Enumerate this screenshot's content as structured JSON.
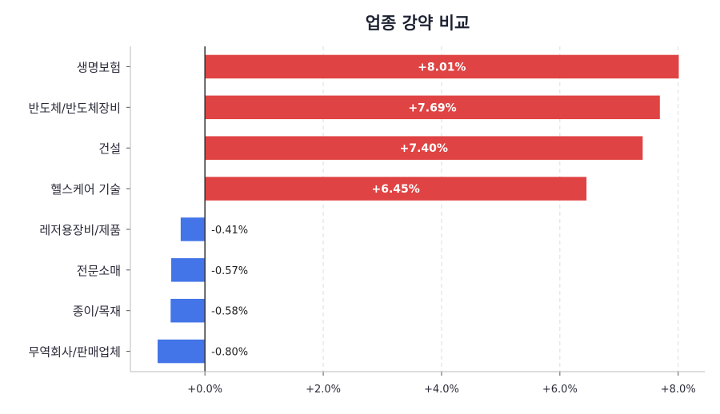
{
  "chart_data": {
    "type": "bar",
    "orientation": "horizontal",
    "title": "업종 강약 비교",
    "xlabel": "",
    "ylabel": "",
    "categories": [
      "생명보험",
      "반도체/반도체장비",
      "건설",
      "헬스케어 기술",
      "레저용장비/제품",
      "전문소매",
      "종이/목재",
      "무역회사/판매업체"
    ],
    "values": [
      8.01,
      7.69,
      7.4,
      6.45,
      -0.41,
      -0.57,
      -0.58,
      -0.8
    ],
    "data_labels": [
      "+8.01%",
      "+7.69%",
      "+7.40%",
      "+6.45%",
      "-0.41%",
      "-0.57%",
      "-0.58%",
      "-0.80%"
    ],
    "xlim": [
      -1.26,
      8.45
    ],
    "xticks": [
      0,
      2,
      4,
      6,
      8
    ],
    "xtick_labels": [
      "+0.0%",
      "+2.0%",
      "+4.0%",
      "+6.0%",
      "+8.0%"
    ],
    "grid": "x dashed",
    "colors": {
      "positive": "#e04343",
      "negative": "#4374e8",
      "zero_line": "#333333",
      "grid": "#dddddd",
      "text": "#2b2b3a"
    }
  }
}
